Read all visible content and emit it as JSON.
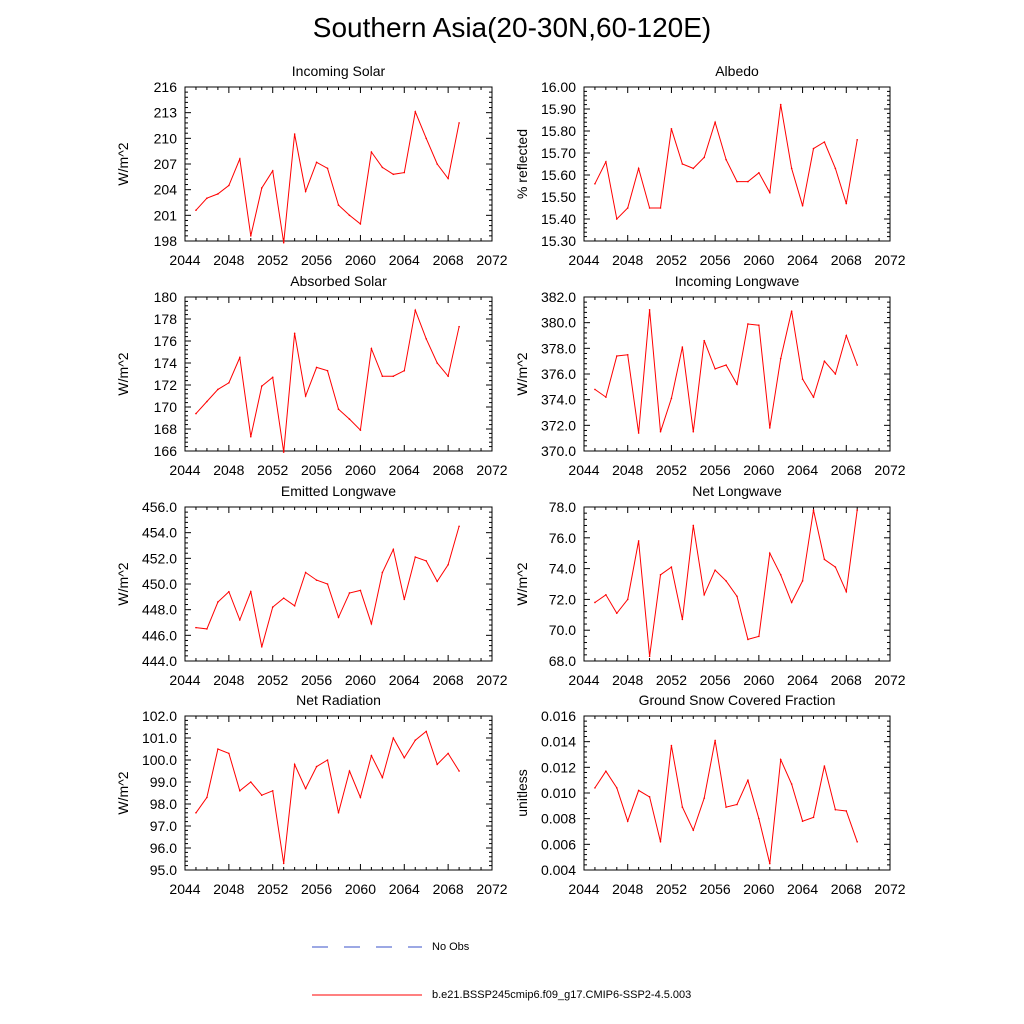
{
  "title": "Southern Asia(20-30N,60-120E)",
  "colors": {
    "model": "#ff0000",
    "obs": "#3a50c8"
  },
  "legend": {
    "obs_label": "No Obs",
    "model_label": "b.e21.BSSP245cmip6.f09_g17.CMIP6-SSP2-4.5.003"
  },
  "chart_data": [
    {
      "type": "line",
      "title": "Incoming Solar",
      "ylabel": "W/m^2",
      "xlim": [
        2044,
        2072
      ],
      "xticks": [
        2044,
        2048,
        2052,
        2056,
        2060,
        2064,
        2068,
        2072
      ],
      "ylim": [
        198,
        216
      ],
      "yticks": [
        198,
        201,
        204,
        207,
        210,
        213,
        216
      ],
      "ydecimals": 0,
      "series": [
        {
          "name": "b.e21.BSSP245cmip6.f09_g17.CMIP6-SSP2-4.5.003",
          "x": [
            2045,
            2046,
            2047,
            2048,
            2049,
            2050,
            2051,
            2052,
            2053,
            2054,
            2055,
            2056,
            2057,
            2058,
            2059,
            2060,
            2061,
            2062,
            2063,
            2064,
            2065,
            2066,
            2067,
            2068,
            2069
          ],
          "values": [
            201.6,
            203.0,
            203.5,
            204.5,
            207.6,
            198.6,
            204.2,
            206.2,
            197.8,
            210.5,
            203.8,
            207.2,
            206.5,
            202.2,
            201.0,
            200.0,
            208.4,
            206.6,
            205.8,
            206.0,
            213.1,
            210.0,
            207.0,
            205.3,
            211.8
          ]
        }
      ]
    },
    {
      "type": "line",
      "title": "Albedo",
      "ylabel": "% reflected",
      "xlim": [
        2044,
        2072
      ],
      "xticks": [
        2044,
        2048,
        2052,
        2056,
        2060,
        2064,
        2068,
        2072
      ],
      "ylim": [
        15.3,
        16.0
      ],
      "yticks": [
        15.3,
        15.4,
        15.5,
        15.6,
        15.7,
        15.8,
        15.9,
        16.0
      ],
      "ydecimals": 2,
      "series": [
        {
          "name": "b.e21.BSSP245cmip6.f09_g17.CMIP6-SSP2-4.5.003",
          "x": [
            2045,
            2046,
            2047,
            2048,
            2049,
            2050,
            2051,
            2052,
            2053,
            2054,
            2055,
            2056,
            2057,
            2058,
            2059,
            2060,
            2061,
            2062,
            2063,
            2064,
            2065,
            2066,
            2067,
            2068,
            2069
          ],
          "values": [
            15.56,
            15.66,
            15.4,
            15.45,
            15.63,
            15.45,
            15.45,
            15.81,
            15.65,
            15.63,
            15.68,
            15.84,
            15.67,
            15.57,
            15.57,
            15.61,
            15.52,
            15.92,
            15.63,
            15.46,
            15.72,
            15.75,
            15.63,
            15.47,
            15.76
          ]
        }
      ]
    },
    {
      "type": "line",
      "title": "Absorbed Solar",
      "ylabel": "W/m^2",
      "xlim": [
        2044,
        2072
      ],
      "xticks": [
        2044,
        2048,
        2052,
        2056,
        2060,
        2064,
        2068,
        2072
      ],
      "ylim": [
        166,
        180
      ],
      "yticks": [
        166,
        168,
        170,
        172,
        174,
        176,
        178,
        180
      ],
      "ydecimals": 0,
      "series": [
        {
          "name": "b.e21.BSSP245cmip6.f09_g17.CMIP6-SSP2-4.5.003",
          "x": [
            2045,
            2046,
            2047,
            2048,
            2049,
            2050,
            2051,
            2052,
            2053,
            2054,
            2055,
            2056,
            2057,
            2058,
            2059,
            2060,
            2061,
            2062,
            2063,
            2064,
            2065,
            2066,
            2067,
            2068,
            2069
          ],
          "values": [
            169.4,
            170.5,
            171.6,
            172.2,
            174.5,
            167.3,
            171.9,
            172.7,
            165.9,
            176.7,
            171.0,
            173.6,
            173.3,
            169.8,
            168.9,
            167.9,
            175.3,
            172.8,
            172.8,
            173.3,
            178.8,
            176.2,
            174.0,
            172.8,
            177.3
          ]
        }
      ]
    },
    {
      "type": "line",
      "title": "Incoming Longwave",
      "ylabel": "W/m^2",
      "xlim": [
        2044,
        2072
      ],
      "xticks": [
        2044,
        2048,
        2052,
        2056,
        2060,
        2064,
        2068,
        2072
      ],
      "ylim": [
        370.0,
        382.0
      ],
      "yticks": [
        370.0,
        372.0,
        374.0,
        376.0,
        378.0,
        380.0,
        382.0
      ],
      "ydecimals": 1,
      "series": [
        {
          "name": "b.e21.BSSP245cmip6.f09_g17.CMIP6-SSP2-4.5.003",
          "x": [
            2045,
            2046,
            2047,
            2048,
            2049,
            2050,
            2051,
            2052,
            2053,
            2054,
            2055,
            2056,
            2057,
            2058,
            2059,
            2060,
            2061,
            2062,
            2063,
            2064,
            2065,
            2066,
            2067,
            2068,
            2069
          ],
          "values": [
            374.8,
            374.2,
            377.4,
            377.5,
            371.4,
            381.0,
            371.5,
            374.1,
            378.1,
            371.5,
            378.6,
            376.4,
            376.7,
            375.2,
            379.9,
            379.8,
            371.8,
            377.2,
            380.9,
            375.6,
            374.2,
            377.0,
            376.0,
            379.0,
            376.7
          ]
        }
      ]
    },
    {
      "type": "line",
      "title": "Emitted Longwave",
      "ylabel": "W/m^2",
      "xlim": [
        2044,
        2072
      ],
      "xticks": [
        2044,
        2048,
        2052,
        2056,
        2060,
        2064,
        2068,
        2072
      ],
      "ylim": [
        444.0,
        456.0
      ],
      "yticks": [
        444.0,
        446.0,
        448.0,
        450.0,
        452.0,
        454.0,
        456.0
      ],
      "ydecimals": 1,
      "series": [
        {
          "name": "b.e21.BSSP245cmip6.f09_g17.CMIP6-SSP2-4.5.003",
          "x": [
            2045,
            2046,
            2047,
            2048,
            2049,
            2050,
            2051,
            2052,
            2053,
            2054,
            2055,
            2056,
            2057,
            2058,
            2059,
            2060,
            2061,
            2062,
            2063,
            2064,
            2065,
            2066,
            2067,
            2068,
            2069
          ],
          "values": [
            446.6,
            446.5,
            448.6,
            449.4,
            447.2,
            449.4,
            445.1,
            448.2,
            448.9,
            448.3,
            450.9,
            450.3,
            450.0,
            447.4,
            449.3,
            449.5,
            446.9,
            450.9,
            452.7,
            448.8,
            452.1,
            451.8,
            450.2,
            451.5,
            454.5
          ]
        }
      ]
    },
    {
      "type": "line",
      "title": "Net Longwave",
      "ylabel": "W/m^2",
      "xlim": [
        2044,
        2072
      ],
      "xticks": [
        2044,
        2048,
        2052,
        2056,
        2060,
        2064,
        2068,
        2072
      ],
      "ylim": [
        68.0,
        78.0
      ],
      "yticks": [
        68.0,
        70.0,
        72.0,
        74.0,
        76.0,
        78.0
      ],
      "ydecimals": 1,
      "series": [
        {
          "name": "b.e21.BSSP245cmip6.f09_g17.CMIP6-SSP2-4.5.003",
          "x": [
            2045,
            2046,
            2047,
            2048,
            2049,
            2050,
            2051,
            2052,
            2053,
            2054,
            2055,
            2056,
            2057,
            2058,
            2059,
            2060,
            2061,
            2062,
            2063,
            2064,
            2065,
            2066,
            2067,
            2068,
            2069
          ],
          "values": [
            71.8,
            72.3,
            71.1,
            72.0,
            75.8,
            68.3,
            73.6,
            74.1,
            70.7,
            76.8,
            72.3,
            73.9,
            73.2,
            72.2,
            69.4,
            69.6,
            75.0,
            73.6,
            71.8,
            73.2,
            77.8,
            74.6,
            74.1,
            72.5,
            77.8
          ]
        }
      ]
    },
    {
      "type": "line",
      "title": "Net Radiation",
      "ylabel": "W/m^2",
      "xlim": [
        2044,
        2072
      ],
      "xticks": [
        2044,
        2048,
        2052,
        2056,
        2060,
        2064,
        2068,
        2072
      ],
      "ylim": [
        95.0,
        102.0
      ],
      "yticks": [
        95.0,
        96.0,
        97.0,
        98.0,
        99.0,
        100.0,
        101.0,
        102.0
      ],
      "ydecimals": 1,
      "series": [
        {
          "name": "b.e21.BSSP245cmip6.f09_g17.CMIP6-SSP2-4.5.003",
          "x": [
            2045,
            2046,
            2047,
            2048,
            2049,
            2050,
            2051,
            2052,
            2053,
            2054,
            2055,
            2056,
            2057,
            2058,
            2059,
            2060,
            2061,
            2062,
            2063,
            2064,
            2065,
            2066,
            2067,
            2068,
            2069
          ],
          "values": [
            97.6,
            98.3,
            100.5,
            100.3,
            98.6,
            99.0,
            98.4,
            98.6,
            95.3,
            99.8,
            98.7,
            99.7,
            100.0,
            97.6,
            99.5,
            98.3,
            100.2,
            99.2,
            101.0,
            100.1,
            100.9,
            101.3,
            99.8,
            100.3,
            99.5
          ]
        }
      ]
    },
    {
      "type": "line",
      "title": "Ground Snow Covered Fraction",
      "ylabel": "unitless",
      "xlim": [
        2044,
        2072
      ],
      "xticks": [
        2044,
        2048,
        2052,
        2056,
        2060,
        2064,
        2068,
        2072
      ],
      "ylim": [
        0.004,
        0.016
      ],
      "yticks": [
        0.004,
        0.006,
        0.008,
        0.01,
        0.012,
        0.014,
        0.016
      ],
      "ydecimals": 3,
      "series": [
        {
          "name": "b.e21.BSSP245cmip6.f09_g17.CMIP6-SSP2-4.5.003",
          "x": [
            2045,
            2046,
            2047,
            2048,
            2049,
            2050,
            2051,
            2052,
            2053,
            2054,
            2055,
            2056,
            2057,
            2058,
            2059,
            2060,
            2061,
            2062,
            2063,
            2064,
            2065,
            2066,
            2067,
            2068,
            2069
          ],
          "values": [
            0.0104,
            0.0117,
            0.0104,
            0.0078,
            0.0102,
            0.0097,
            0.0062,
            0.0137,
            0.0089,
            0.0071,
            0.0096,
            0.0141,
            0.0089,
            0.0091,
            0.011,
            0.008,
            0.0045,
            0.0126,
            0.0107,
            0.0078,
            0.0081,
            0.0121,
            0.0087,
            0.0086,
            0.0062
          ]
        }
      ]
    }
  ]
}
